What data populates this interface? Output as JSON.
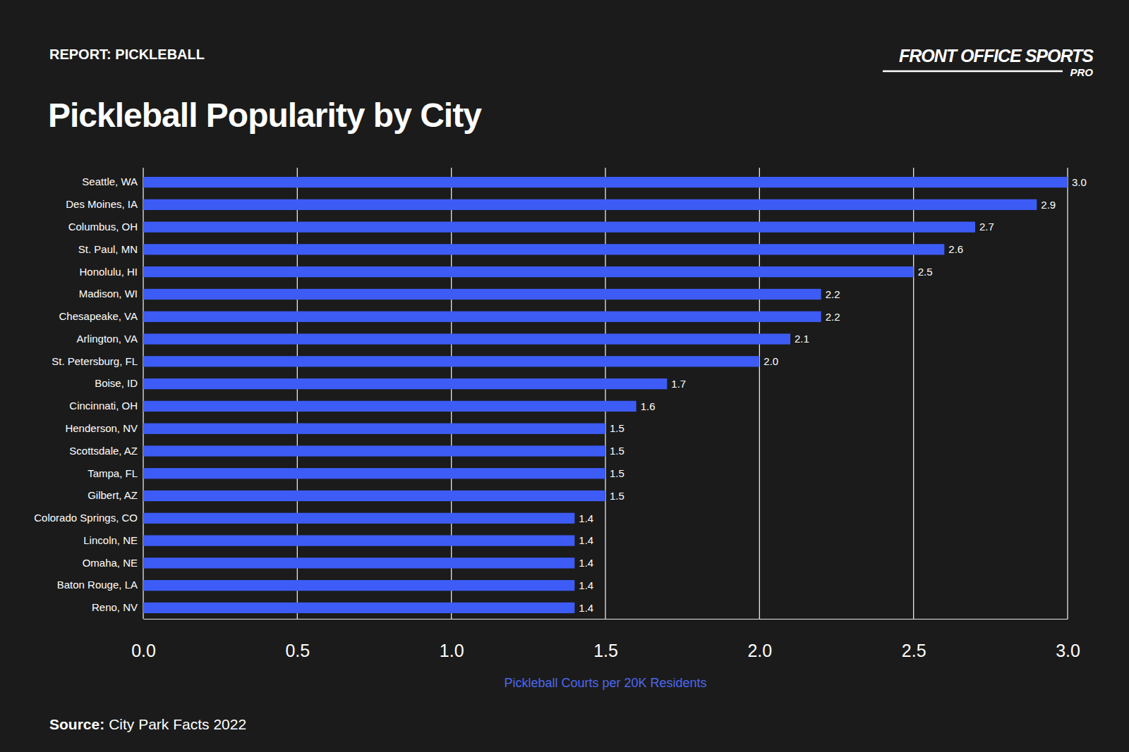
{
  "chart_data": {
    "type": "bar",
    "orientation": "horizontal",
    "subtitle": "REPORT: PICKLEBALL",
    "title": "Pickleball Popularity by City",
    "annotations": [
      "FRONT OFFICE SPORTS",
      "PRO"
    ],
    "x_label": "Pickleball Courts per 20K Residents",
    "source": {
      "label": "Source:",
      "text": "City Park Facts 2022"
    },
    "categories": [
      "Seattle, WA",
      "Des Moines, IA",
      "Columbus, OH",
      "St. Paul, MN",
      "Honolulu, HI",
      "Madison, WI",
      "Chesapeake, VA",
      "Arlington, VA",
      "St. Petersburg, FL",
      "Boise, ID",
      "Cincinnati, OH",
      "Henderson, NV",
      "Scottsdale, AZ",
      "Tampa, FL",
      "Gilbert, AZ",
      "Colorado Springs, CO",
      "Lincoln, NE",
      "Omaha, NE",
      "Baton Rouge, LA",
      "Reno, NV"
    ],
    "values": [
      3.0,
      2.9,
      2.7,
      2.6,
      2.5,
      2.2,
      2.2,
      2.1,
      2.0,
      1.7,
      1.6,
      1.5,
      1.5,
      1.5,
      1.5,
      1.4,
      1.4,
      1.4,
      1.4,
      1.4
    ],
    "value_labels": [
      "3.0",
      "2.9",
      "2.7",
      "2.6",
      "2.5",
      "2.2",
      "2.2",
      "2.1",
      "2.0",
      "1.7",
      "1.6",
      "1.5",
      "1.5",
      "1.5",
      "1.5",
      "1.4",
      "1.4",
      "1.4",
      "1.4",
      "1.4"
    ],
    "data_labels": true,
    "color": "#3d5cf5",
    "xlim": [
      0,
      3
    ],
    "xticks": [
      {
        "value": 0,
        "label": "0.0"
      },
      0.5,
      {
        "value": 1,
        "label": "1.0"
      },
      1.5,
      {
        "value": 2,
        "label": "2.0"
      },
      2.5,
      {
        "value": 3,
        "label": "3.0"
      }
    ],
    "grid": true
  }
}
